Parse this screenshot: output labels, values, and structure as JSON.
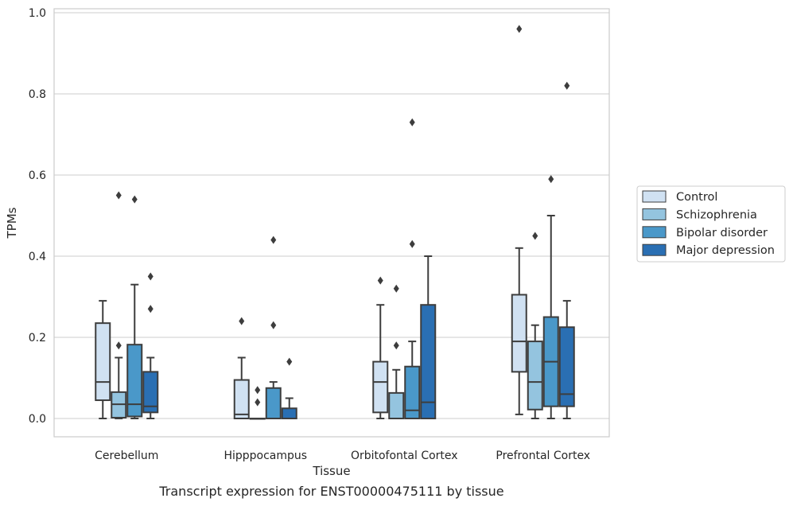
{
  "chart_data": {
    "type": "box",
    "title": "Transcript expression for ENST00000475111 by tissue",
    "xlabel": "Tissue",
    "ylabel": "TPMs",
    "ylim": [
      -0.045,
      1.01
    ],
    "yticks": [
      0.0,
      0.2,
      0.4,
      0.6,
      0.8,
      1.0
    ],
    "ytick_labels": [
      "0.0",
      "0.2",
      "0.4",
      "0.6",
      "0.8",
      "1.0"
    ],
    "grid": "horizontal",
    "legend_position": "right-center",
    "categories": [
      "Cerebellum",
      "Hipppocampus",
      "Orbitofontal Cortex",
      "Prefrontal Cortex"
    ],
    "series": [
      {
        "name": "Control",
        "color": "#d0e1f2",
        "boxes": [
          {
            "whislo": 0.0,
            "q1": 0.045,
            "med": 0.09,
            "q3": 0.235,
            "whishi": 0.29,
            "fliers": []
          },
          {
            "whislo": 0.0,
            "q1": 0.0,
            "med": 0.01,
            "q3": 0.095,
            "whishi": 0.15,
            "fliers": [
              0.24
            ]
          },
          {
            "whislo": 0.0,
            "q1": 0.015,
            "med": 0.09,
            "q3": 0.14,
            "whishi": 0.28,
            "fliers": [
              0.34
            ]
          },
          {
            "whislo": 0.01,
            "q1": 0.115,
            "med": 0.19,
            "q3": 0.305,
            "whishi": 0.42,
            "fliers": [
              0.96
            ]
          }
        ]
      },
      {
        "name": "Schizophrenia",
        "color": "#94c4df",
        "boxes": [
          {
            "whislo": 0.0,
            "q1": 0.002,
            "med": 0.035,
            "q3": 0.065,
            "whishi": 0.15,
            "fliers": [
              0.18,
              0.55
            ]
          },
          {
            "whislo": 0.0,
            "q1": 0.0,
            "med": 0.0,
            "q3": 0.0,
            "whishi": 0.0,
            "fliers": [
              0.04,
              0.07
            ]
          },
          {
            "whislo": 0.0,
            "q1": 0.0,
            "med": 0.0,
            "q3": 0.063,
            "whishi": 0.12,
            "fliers": [
              0.18,
              0.32
            ]
          },
          {
            "whislo": 0.0,
            "q1": 0.022,
            "med": 0.09,
            "q3": 0.19,
            "whishi": 0.23,
            "fliers": [
              0.45
            ]
          }
        ]
      },
      {
        "name": "Bipolar disorder",
        "color": "#4a98c9",
        "boxes": [
          {
            "whislo": 0.0,
            "q1": 0.005,
            "med": 0.035,
            "q3": 0.182,
            "whishi": 0.33,
            "fliers": [
              0.54
            ]
          },
          {
            "whislo": 0.0,
            "q1": 0.0,
            "med": 0.0,
            "q3": 0.075,
            "whishi": 0.09,
            "fliers": [
              0.23,
              0.44
            ]
          },
          {
            "whislo": 0.0,
            "q1": 0.0,
            "med": 0.02,
            "q3": 0.128,
            "whishi": 0.19,
            "fliers": [
              0.43,
              0.73
            ]
          },
          {
            "whislo": 0.0,
            "q1": 0.03,
            "med": 0.14,
            "q3": 0.25,
            "whishi": 0.5,
            "fliers": [
              0.59
            ]
          }
        ]
      },
      {
        "name": "Major depression",
        "color": "#2a6fb3",
        "boxes": [
          {
            "whislo": 0.0,
            "q1": 0.015,
            "med": 0.03,
            "q3": 0.115,
            "whishi": 0.15,
            "fliers": [
              0.27,
              0.35
            ]
          },
          {
            "whislo": 0.0,
            "q1": 0.0,
            "med": 0.0,
            "q3": 0.025,
            "whishi": 0.05,
            "fliers": [
              0.14
            ]
          },
          {
            "whislo": 0.0,
            "q1": 0.0,
            "med": 0.04,
            "q3": 0.28,
            "whishi": 0.4,
            "fliers": []
          },
          {
            "whislo": 0.0,
            "q1": 0.03,
            "med": 0.06,
            "q3": 0.225,
            "whishi": 0.29,
            "fliers": [
              0.82
            ]
          }
        ]
      }
    ]
  }
}
